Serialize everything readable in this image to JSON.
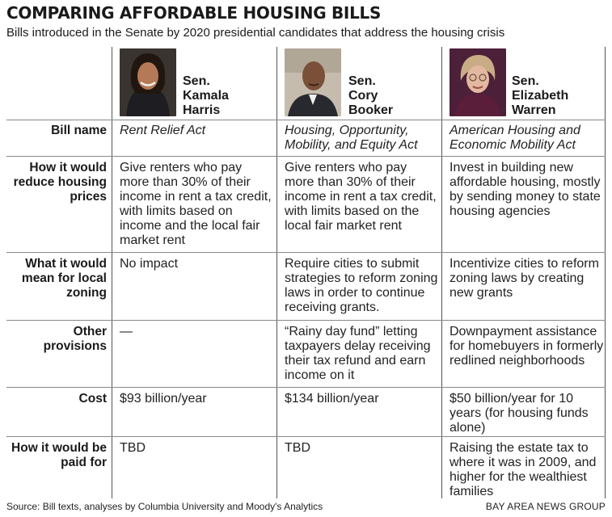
{
  "title": "COMPARING AFFORDABLE HOUSING BILLS",
  "subtitle": "Bills introduced in the Senate by 2020 presidential candidates that address the housing crisis",
  "candidates": [
    {
      "name": "Sen.\nKamala\nHarris"
    },
    {
      "name": "Sen.\nCory\nBooker"
    },
    {
      "name": "Sen.\nElizabeth\nWarren"
    }
  ],
  "rows": [
    {
      "label": "Bill name",
      "cells": [
        "Rent Relief Act",
        "Housing, Opportunity, Mobility, and Equity Act",
        "American Housing and Economic Mobility Act"
      ]
    },
    {
      "label": "How it would reduce housing prices",
      "cells": [
        "Give renters who pay more than 30% of their income in rent a tax credit, with limits based on income and the local fair market rent",
        "Give renters who pay more than 30% of their income in rent a tax credit, with limits based on the local fair market rent",
        "Invest in building new affordable housing, mostly by sending money to state housing agencies"
      ]
    },
    {
      "label": "What it would mean for local zoning",
      "cells": [
        "No impact",
        "Require cities to submit strategies to reform zoning laws in order to continue receiving grants.",
        "Incentivize cities to reform zoning laws by creating new grants"
      ]
    },
    {
      "label": "Other provisions",
      "cells": [
        "—",
        "“Rainy day fund” letting taxpayers delay receiving their tax refund and earn income on it",
        "Downpayment assistance for homebuyers in formerly redlined neighborhoods"
      ]
    },
    {
      "label": "Cost",
      "cells": [
        "$93 billion/year",
        "$134 billion/year",
        "$50 billion/year for 10 years (for housing funds alone)"
      ]
    },
    {
      "label": "How it would be paid for",
      "cells": [
        "TBD",
        "TBD",
        "Raising the estate tax to where it was in 2009, and higher for the wealthiest families"
      ]
    }
  ],
  "source": "Source: Bill texts, analyses by Columbia University and Moody's Analytics",
  "credit": "BAY AREA NEWS GROUP"
}
